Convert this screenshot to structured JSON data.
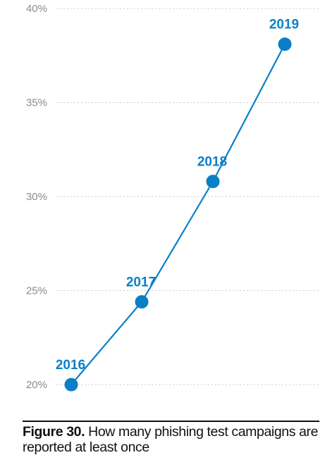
{
  "chart_data": {
    "type": "line",
    "yticks": [
      {
        "value": 40,
        "label": "40%"
      },
      {
        "value": 35,
        "label": "35%"
      },
      {
        "value": 30,
        "label": "30%"
      },
      {
        "value": 25,
        "label": "25%"
      },
      {
        "value": 20,
        "label": "20%"
      }
    ],
    "ylim": [
      20,
      40
    ],
    "grid": true,
    "points": [
      {
        "label": "2016",
        "value": 20.0
      },
      {
        "label": "2017",
        "value": 24.4
      },
      {
        "label": "2018",
        "value": 30.8
      },
      {
        "label": "2019",
        "value": 38.1
      }
    ],
    "colors": {
      "series": "#0a7fc6",
      "grid": "#c9c9c9",
      "ticks": "#8a8a8a"
    }
  },
  "caption": {
    "label": "Figure 30.",
    "text": " How many phishing test campaigns are reported at least once"
  }
}
